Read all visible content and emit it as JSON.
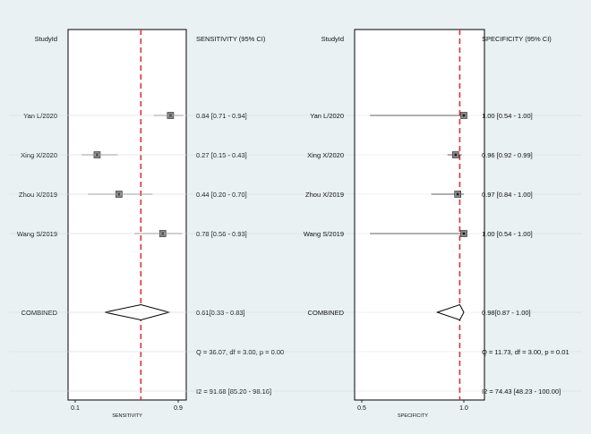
{
  "chart_data": [
    {
      "type": "forest",
      "header_left": "StudyId",
      "header_right": "SENSITIVITY (95% CI)",
      "xlabel": "SENSITIVITY",
      "xlim": [
        0.1,
        0.9
      ],
      "xticks": [
        {
          "value": 0.1,
          "label": "0.1"
        },
        {
          "value": 0.9,
          "label": "0.9"
        }
      ],
      "reference_line": 0.61,
      "rows": [
        {
          "label": "Yan L/2020",
          "estimate": 0.84,
          "lower": 0.71,
          "upper": 0.94,
          "ci_text": "0.84 [0.71 - 0.94]"
        },
        {
          "label": "Xing X/2020",
          "estimate": 0.27,
          "lower": 0.15,
          "upper": 0.43,
          "ci_text": "0.27 [0.15 - 0.43]"
        },
        {
          "label": "Zhou X/2019",
          "estimate": 0.44,
          "lower": 0.2,
          "upper": 0.7,
          "ci_text": "0.44 [0.20 - 0.70]"
        },
        {
          "label": "Wang S/2019",
          "estimate": 0.78,
          "lower": 0.56,
          "upper": 0.93,
          "ci_text": "0.78 [0.56 - 0.93]"
        }
      ],
      "combined": {
        "label": "COMBINED",
        "estimate": 0.61,
        "lower": 0.33,
        "upper": 0.83,
        "ci_text": "0.61[0.33 - 0.83]"
      },
      "stats_q": "Q = 36.07, df = 3.00, p =  0.00",
      "stats_i2": "I2 = 91.68 [85.20 - 98.16]"
    },
    {
      "type": "forest",
      "header_left": "StudyId",
      "header_right": "SPECIFICITY (95% CI)",
      "xlabel": "SPECIFICITY",
      "xlim": [
        0.5,
        1.0
      ],
      "xticks": [
        {
          "value": 0.5,
          "label": "0.5"
        },
        {
          "value": 1.0,
          "label": "1.0"
        }
      ],
      "reference_line": 0.98,
      "rows": [
        {
          "label": "Yan L/2020",
          "estimate": 1.0,
          "lower": 0.54,
          "upper": 1.0,
          "ci_text": "1.00 [0.54 - 1.00]"
        },
        {
          "label": "Xing X/2020",
          "estimate": 0.96,
          "lower": 0.92,
          "upper": 0.99,
          "ci_text": "0.96 [0.92 - 0.99]"
        },
        {
          "label": "Zhou X/2019",
          "estimate": 0.97,
          "lower": 0.84,
          "upper": 1.0,
          "ci_text": "0.97 [0.84 - 1.00]"
        },
        {
          "label": "Wang S/2019",
          "estimate": 1.0,
          "lower": 0.54,
          "upper": 1.0,
          "ci_text": "1.00 [0.54 - 1.00]"
        }
      ],
      "combined": {
        "label": "COMBINED",
        "estimate": 0.98,
        "lower": 0.87,
        "upper": 1.0,
        "ci_text": "0.98[0.87 - 1.00]"
      },
      "stats_q": "Q = 11.73, df = 3.00, p =  0.01",
      "stats_i2": "I2 = 74.43 [48.23 - 100.00]"
    }
  ],
  "colors": {
    "background": "#eaf1f3",
    "plot_background": "#ffffff",
    "reference_line": "#e0303a",
    "marker_fill": "#888888",
    "grid_line": "#d9e1e4"
  }
}
